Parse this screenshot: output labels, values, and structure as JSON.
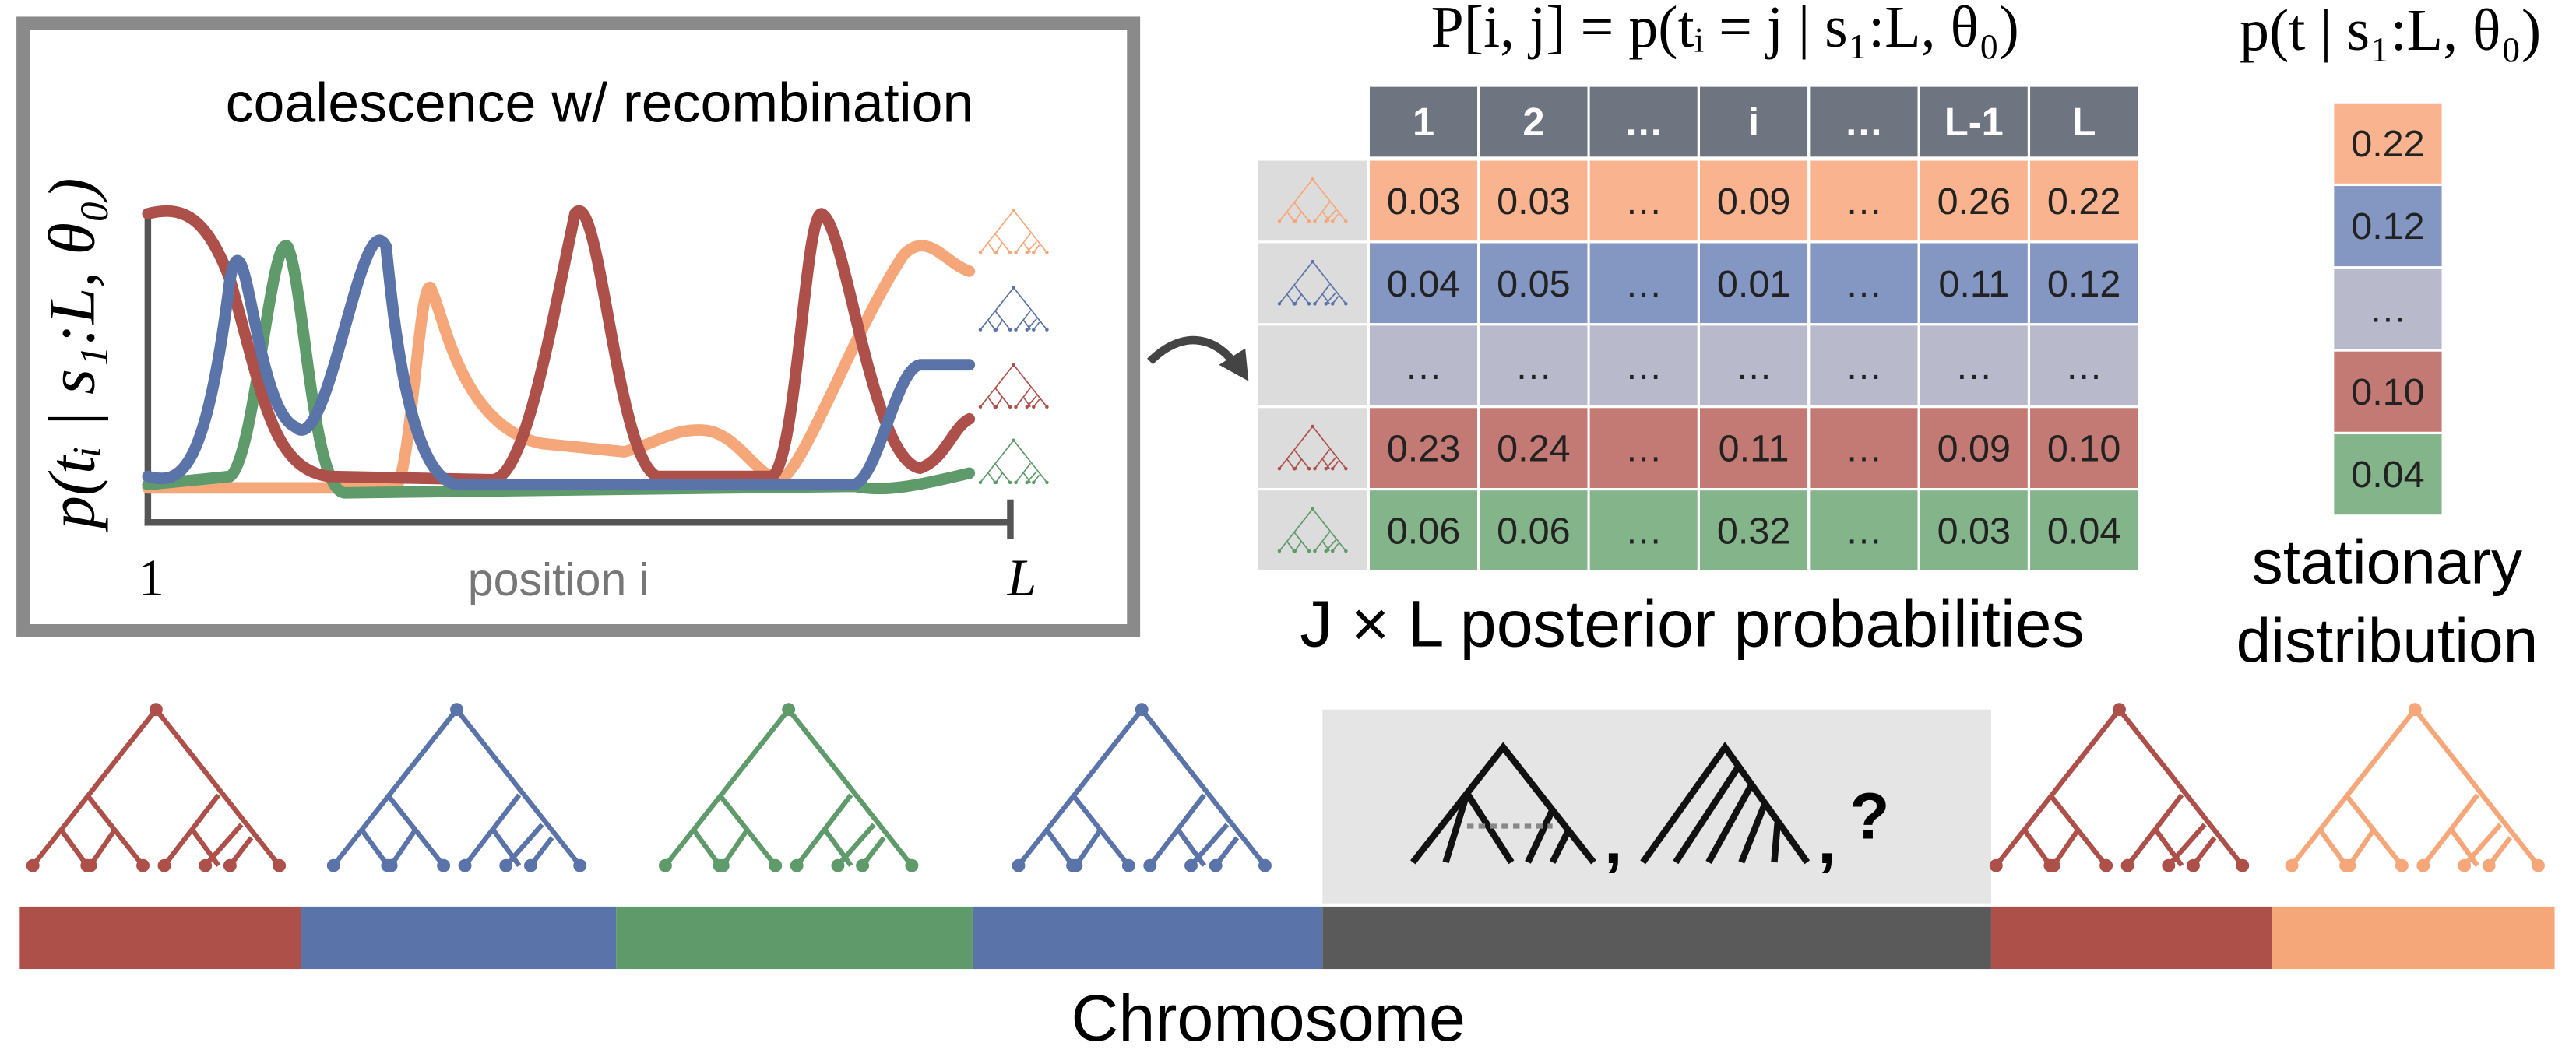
{
  "panel": {
    "title": "coalescence w/ recombination",
    "y_label": "p(tᵢ | s₁:L, θ₀)",
    "x_start": "1",
    "x_label": "position i",
    "x_end": "L"
  },
  "matrix": {
    "title": "P[i, j] = p(tᵢ = j | s₁:L, θ₀)",
    "columns": [
      "1",
      "2",
      "…",
      "i",
      "…",
      "L-1",
      "L"
    ],
    "rows": [
      {
        "color": "#f9b48f",
        "cells": [
          "0.03",
          "0.03",
          "…",
          "0.09",
          "…",
          "0.26",
          "0.22"
        ]
      },
      {
        "color": "#8496c2",
        "cells": [
          "0.04",
          "0.05",
          "…",
          "0.01",
          "…",
          "0.11",
          "0.12"
        ]
      },
      {
        "color": "#b8b9cb",
        "cells": [
          "…",
          "…",
          "…",
          "…",
          "…",
          "…",
          "…"
        ]
      },
      {
        "color": "#c47a74",
        "cells": [
          "0.23",
          "0.24",
          "…",
          "0.11",
          "…",
          "0.09",
          "0.10"
        ]
      },
      {
        "color": "#83b48a",
        "cells": [
          "0.06",
          "0.06",
          "…",
          "0.32",
          "…",
          "0.03",
          "0.04"
        ]
      }
    ],
    "caption": "J × L posterior probabilities"
  },
  "stationary": {
    "title": "p(t | s₁:L, θ₀)",
    "cells": [
      {
        "color": "#f9b48f",
        "label": "0.22"
      },
      {
        "color": "#8496c2",
        "label": "0.12"
      },
      {
        "color": "#b8b9cb",
        "label": "…"
      },
      {
        "color": "#c47a74",
        "label": "0.10"
      },
      {
        "color": "#83b48a",
        "label": "0.04"
      }
    ],
    "caption_line1": "stationary",
    "caption_line2": "distribution"
  },
  "chromosome": {
    "separator": ",",
    "unknown": "?",
    "label": "Chromosome"
  }
}
